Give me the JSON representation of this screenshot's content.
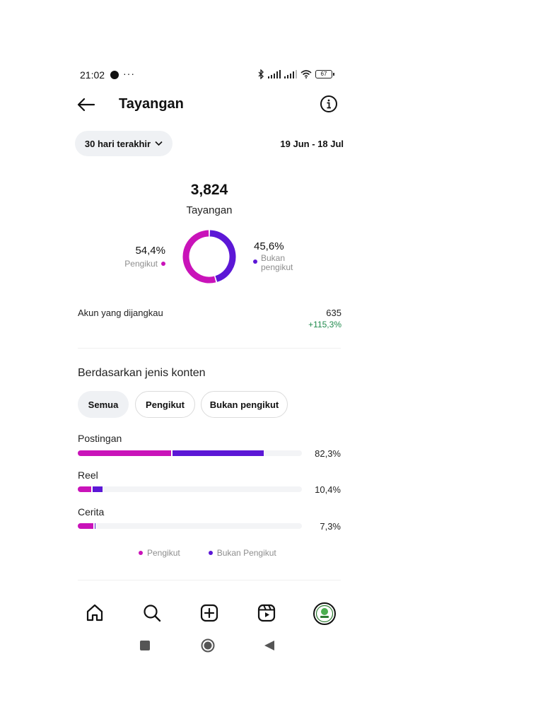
{
  "status_bar": {
    "time": "21:02",
    "overflow": "···",
    "battery": "67",
    "icons": [
      "facebook-icon",
      "bluetooth-icon",
      "signal-icon",
      "signal-icon",
      "wifi-icon",
      "battery-icon"
    ]
  },
  "header": {
    "title": "Tayangan",
    "back_icon": "arrow-left-icon",
    "info_icon": "info-icon"
  },
  "date_filter": {
    "selected": "30 hari terakhir",
    "range": "19 Jun - 18 Jul"
  },
  "summary": {
    "total": "3,824",
    "label": "Tayangan",
    "followers": {
      "pct_label": "54,4%",
      "label": "Pengikut",
      "value": 54.4
    },
    "non_followers": {
      "pct_label": "45,6%",
      "label_line1": "Bukan",
      "label_line2": "pengikut",
      "value": 45.6
    }
  },
  "reach": {
    "label": "Akun yang dijangkau",
    "value": "635",
    "change": "+115,3%"
  },
  "content_type": {
    "title": "Berdasarkan jenis konten",
    "tabs": [
      "Semua",
      "Pengikut",
      "Bukan pengikut"
    ],
    "active_tab": "Semua",
    "rows": [
      {
        "label": "Postingan",
        "pct": "82,3%",
        "followers": 41.5,
        "non_followers": 40.8
      },
      {
        "label": "Reel",
        "pct": "10,4%",
        "followers": 6.0,
        "non_followers": 4.4
      },
      {
        "label": "Cerita",
        "pct": "7,3%",
        "followers": 6.9,
        "non_followers": 0.4
      }
    ],
    "legend": {
      "followers": "Pengikut",
      "non_followers": "Bukan Pengikut"
    }
  },
  "colors": {
    "followers": "#c913b9",
    "non_followers": "#5c17d6",
    "positive": "#1f8a4c"
  },
  "bottom_nav": [
    "home-icon",
    "search-icon",
    "create-icon",
    "reels-icon",
    "profile-avatar"
  ],
  "system_nav": [
    "recent-apps-icon",
    "home-button-icon",
    "back-triangle-icon"
  ]
}
